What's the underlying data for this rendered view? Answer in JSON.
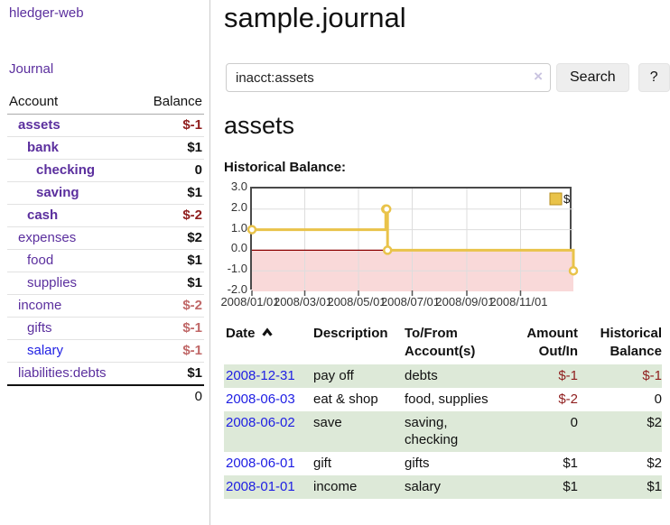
{
  "sidebar": {
    "brand": "hledger-web",
    "journal_link": "Journal",
    "accounts_table": {
      "headers": [
        "Account",
        "Balance"
      ],
      "rows": [
        {
          "name": "assets",
          "balance": "$-1",
          "depth": 0
        },
        {
          "name": "bank",
          "balance": "$1",
          "depth": 1
        },
        {
          "name": "checking",
          "balance": "0",
          "depth": 2
        },
        {
          "name": "saving",
          "balance": "$1",
          "depth": 2
        },
        {
          "name": "cash",
          "balance": "$-2",
          "depth": 1
        },
        {
          "name": "expenses",
          "balance": "$2",
          "depth": 0
        },
        {
          "name": "food",
          "balance": "$1",
          "depth": 1
        },
        {
          "name": "supplies",
          "balance": "$1",
          "depth": 1
        },
        {
          "name": "income",
          "balance": "$-2",
          "depth": 0
        },
        {
          "name": "gifts",
          "balance": "$-1",
          "depth": 1
        },
        {
          "name": "salary",
          "balance": "$-1",
          "depth": 1
        },
        {
          "name": "liabilities:debts",
          "balance": "$1",
          "depth": 0
        }
      ],
      "total": "0"
    }
  },
  "main": {
    "title": "sample.journal",
    "search": {
      "value": "inacct:assets",
      "clear_icon": "×",
      "button_label": "Search",
      "help_label": "?"
    },
    "account_heading": "assets",
    "chart_label": "Historical Balance:"
  },
  "chart_data": {
    "type": "line",
    "step": true,
    "title": "Historical Balance:",
    "x_domain": [
      "2008-01-01",
      "2008-12-31"
    ],
    "ylim": [
      -2,
      3
    ],
    "yticks": [
      3,
      2,
      1,
      0,
      -1,
      -2
    ],
    "xticks": [
      {
        "label": "2008/01/01",
        "date": "2008-01-01"
      },
      {
        "label": "2008/03/01",
        "date": "2008-03-01"
      },
      {
        "label": "2008/05/01",
        "date": "2008-05-01"
      },
      {
        "label": "2008/07/01",
        "date": "2008-07-01"
      },
      {
        "label": "2008/09/01",
        "date": "2008-09-01"
      },
      {
        "label": "2008/11/01",
        "date": "2008-11-01"
      }
    ],
    "series": [
      {
        "name": "$",
        "color": "#e9c34a",
        "points": [
          [
            "2008-01-01",
            1
          ],
          [
            "2008-06-01",
            2
          ],
          [
            "2008-06-02",
            2
          ],
          [
            "2008-06-03",
            0
          ],
          [
            "2008-12-31",
            -1
          ]
        ]
      }
    ],
    "legend_position": "top-right",
    "colors": {
      "negative_region": "#f9d9d9",
      "zero_line": "#8b0000",
      "grid": "#dddddd",
      "marker_fill": "#ffffff",
      "legend_border": "#b68c1e",
      "axis_tick": "#555555"
    }
  },
  "register": {
    "headers": {
      "date": "Date",
      "sort_icon": "caret-up",
      "description": "Description",
      "account": [
        "To/From",
        "Account(s)"
      ],
      "amount": [
        "Amount",
        "Out/In"
      ],
      "balance": [
        "Historical",
        "Balance"
      ]
    },
    "rows": [
      {
        "date": "2008-12-31",
        "description": "pay off",
        "accounts": [
          "debts"
        ],
        "amount": "$-1",
        "balance": "$-1"
      },
      {
        "date": "2008-06-03",
        "description": "eat & shop",
        "accounts": [
          "food, supplies"
        ],
        "amount": "$-2",
        "balance": "0"
      },
      {
        "date": "2008-06-02",
        "description": "save",
        "accounts": [
          "saving,",
          "checking"
        ],
        "amount": "0",
        "balance": "$2"
      },
      {
        "date": "2008-06-01",
        "description": "gift",
        "accounts": [
          "gifts"
        ],
        "amount": "$1",
        "balance": "$2"
      },
      {
        "date": "2008-01-01",
        "description": "income",
        "accounts": [
          "salary"
        ],
        "amount": "$1",
        "balance": "$1"
      }
    ]
  }
}
